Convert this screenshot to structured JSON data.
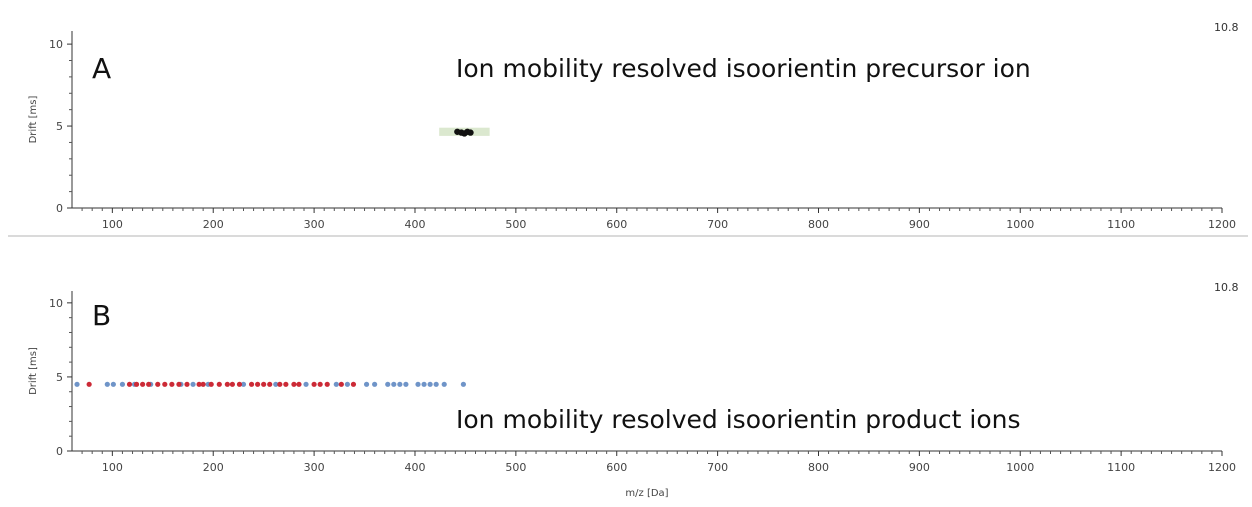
{
  "chart_data": [
    {
      "type": "scatter",
      "panel": "A",
      "annotation": "Ion mobility resolved isoorientin precursor ion",
      "corner_value": "10.8",
      "ylabel": "Drift [ms]",
      "xlabel": "",
      "xlim": [
        60,
        1200
      ],
      "ylim": [
        0,
        10.8
      ],
      "x_ticks": [
        100,
        200,
        300,
        400,
        500,
        600,
        700,
        800,
        900,
        1000,
        1100,
        1200
      ],
      "y_ticks": [
        0,
        5,
        10
      ],
      "highlight": {
        "x_range": [
          424,
          474
        ],
        "y_range": [
          4.4,
          4.9
        ],
        "color": "#dbe8cf"
      },
      "series": [
        {
          "color": "#111111",
          "points": [
            [
              442,
              4.65
            ],
            [
              446,
              4.6
            ],
            [
              449,
              4.55
            ],
            [
              452,
              4.65
            ],
            [
              455,
              4.6
            ]
          ]
        }
      ]
    },
    {
      "type": "scatter",
      "panel": "B",
      "annotation": "Ion mobility resolved isoorientin product ions",
      "corner_value": "10.8",
      "ylabel": "Drift [ms]",
      "xlabel": "m/z [Da]",
      "xlim": [
        60,
        1200
      ],
      "ylim": [
        0,
        10.8
      ],
      "x_ticks": [
        100,
        200,
        300,
        400,
        500,
        600,
        700,
        800,
        900,
        1000,
        1100,
        1200
      ],
      "y_ticks": [
        0,
        5,
        10
      ],
      "series": [
        {
          "color": "#6f94c8",
          "points": [
            [
              65,
              4.5
            ],
            [
              95,
              4.5
            ],
            [
              101,
              4.5
            ],
            [
              110,
              4.5
            ],
            [
              122,
              4.5
            ],
            [
              138,
              4.5
            ],
            [
              168,
              4.5
            ],
            [
              180,
              4.5
            ],
            [
              195,
              4.5
            ],
            [
              230,
              4.5
            ],
            [
              262,
              4.5
            ],
            [
              292,
              4.5
            ],
            [
              322,
              4.5
            ],
            [
              333,
              4.5
            ],
            [
              352,
              4.5
            ],
            [
              360,
              4.5
            ],
            [
              373,
              4.5
            ],
            [
              379,
              4.5
            ],
            [
              385,
              4.5
            ],
            [
              391,
              4.5
            ],
            [
              403,
              4.5
            ],
            [
              409,
              4.5
            ],
            [
              415,
              4.5
            ],
            [
              421,
              4.5
            ],
            [
              429,
              4.5
            ],
            [
              448,
              4.5
            ]
          ]
        },
        {
          "color": "#cc2a36",
          "points": [
            [
              77,
              4.5
            ],
            [
              117,
              4.5
            ],
            [
              124,
              4.5
            ],
            [
              130,
              4.5
            ],
            [
              136,
              4.5
            ],
            [
              145,
              4.5
            ],
            [
              152,
              4.5
            ],
            [
              159,
              4.5
            ],
            [
              166,
              4.5
            ],
            [
              174,
              4.5
            ],
            [
              186,
              4.5
            ],
            [
              190,
              4.5
            ],
            [
              198,
              4.5
            ],
            [
              206,
              4.5
            ],
            [
              214,
              4.5
            ],
            [
              219,
              4.5
            ],
            [
              226,
              4.5
            ],
            [
              238,
              4.5
            ],
            [
              244,
              4.5
            ],
            [
              250,
              4.5
            ],
            [
              256,
              4.5
            ],
            [
              266,
              4.5
            ],
            [
              272,
              4.5
            ],
            [
              280,
              4.5
            ],
            [
              285,
              4.5
            ],
            [
              300,
              4.5
            ],
            [
              306,
              4.5
            ],
            [
              313,
              4.5
            ],
            [
              327,
              4.5
            ],
            [
              339,
              4.5
            ]
          ]
        }
      ]
    }
  ]
}
